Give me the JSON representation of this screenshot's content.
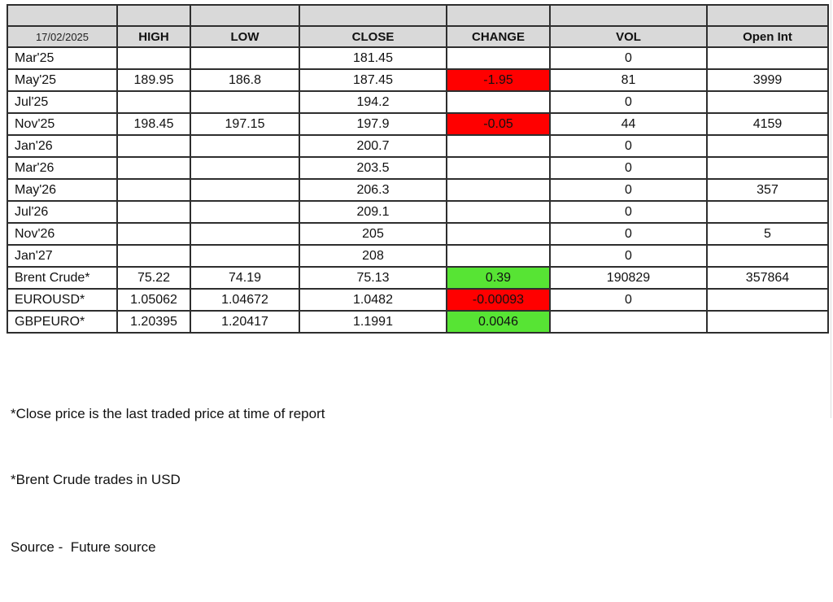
{
  "report": {
    "date": "17/02/2025",
    "headers": [
      "HIGH",
      "LOW",
      "CLOSE",
      "CHANGE",
      "VOL",
      "Open Int"
    ],
    "rows": [
      {
        "label": "Mar'25",
        "high": "",
        "low": "",
        "close": "181.45",
        "change": "",
        "change_color": "",
        "vol": "0",
        "open_int": ""
      },
      {
        "label": "May'25",
        "high": "189.95",
        "low": "186.8",
        "close": "187.45",
        "change": "-1.95",
        "change_color": "red",
        "vol": "81",
        "open_int": "3999"
      },
      {
        "label": "Jul'25",
        "high": "",
        "low": "",
        "close": "194.2",
        "change": "",
        "change_color": "",
        "vol": "0",
        "open_int": ""
      },
      {
        "label": "Nov'25",
        "high": "198.45",
        "low": "197.15",
        "close": "197.9",
        "change": "-0.05",
        "change_color": "red",
        "vol": "44",
        "open_int": "4159"
      },
      {
        "label": "Jan'26",
        "high": "",
        "low": "",
        "close": "200.7",
        "change": "",
        "change_color": "",
        "vol": "0",
        "open_int": ""
      },
      {
        "label": "Mar'26",
        "high": "",
        "low": "",
        "close": "203.5",
        "change": "",
        "change_color": "",
        "vol": "0",
        "open_int": ""
      },
      {
        "label": "May'26",
        "high": "",
        "low": "",
        "close": "206.3",
        "change": "",
        "change_color": "",
        "vol": "0",
        "open_int": "357"
      },
      {
        "label": "Jul'26",
        "high": "",
        "low": "",
        "close": "209.1",
        "change": "",
        "change_color": "",
        "vol": "0",
        "open_int": ""
      },
      {
        "label": "Nov'26",
        "high": "",
        "low": "",
        "close": "205",
        "change": "",
        "change_color": "",
        "vol": "0",
        "open_int": "5"
      },
      {
        "label": "Jan'27",
        "high": "",
        "low": "",
        "close": "208",
        "change": "",
        "change_color": "",
        "vol": "0",
        "open_int": ""
      },
      {
        "label": "Brent Crude*",
        "high": "75.22",
        "low": "74.19",
        "close": "75.13",
        "change": "0.39",
        "change_color": "green",
        "vol": "190829",
        "open_int": "357864"
      },
      {
        "label": "EUROUSD*",
        "high": "1.05062",
        "low": "1.04672",
        "close": "1.0482",
        "change": "-0.00093",
        "change_color": "red",
        "vol": "0",
        "open_int": ""
      },
      {
        "label": "GBPEURO*",
        "high": "1.20395",
        "low": "1.20417",
        "close": "1.1991",
        "change": "0.0046",
        "change_color": "green",
        "vol": "",
        "open_int": ""
      }
    ],
    "footnotes": [
      "*Close price is the last traded price at time of report",
      "*Brent Crude trades in USD",
      "Source -  Future source"
    ],
    "colors": {
      "header_bg": "#d9d9d9",
      "negative_bg": "#ff0000",
      "positive_bg": "#57e434",
      "border": "#2e2e2e"
    }
  }
}
